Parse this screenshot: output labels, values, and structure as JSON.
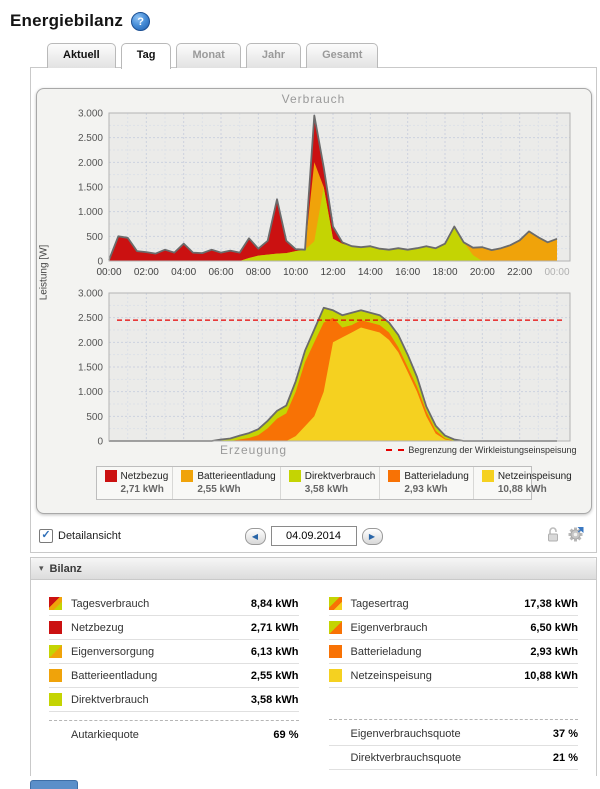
{
  "header": {
    "title": "Energiebilanz",
    "help_glyph": "?"
  },
  "tabs": [
    {
      "label": "Aktuell"
    },
    {
      "label": "Tag"
    },
    {
      "label": "Monat"
    },
    {
      "label": "Jahr"
    },
    {
      "label": "Gesamt"
    }
  ],
  "colors": {
    "netzbezug": "#cb1111",
    "batterieentladung": "#f0a30a",
    "direktverbrauch": "#c4d403",
    "batterieladung": "#f87205",
    "netzeinspeisung": "#f5d120",
    "limit_line": "#e60000",
    "outline": "#6b6b6b"
  },
  "swatches": {
    "tagesverbrauch": [
      "netzbezug",
      "batterieentladung",
      "direktverbrauch"
    ],
    "tagesertrag": [
      "direktverbrauch",
      "batterieladung",
      "netzeinspeisung"
    ],
    "eigenversorgung": [
      "direktverbrauch",
      "batterieentladung"
    ],
    "eigenverbrauch": [
      "direktverbrauch",
      "batterieladung"
    ]
  },
  "axis": {
    "ylabel": "Leistung [W]",
    "unit": "W",
    "yticks": [
      "3.000",
      "2.500",
      "2.000",
      "1.500",
      "1.000",
      "500",
      "0"
    ],
    "xticks": [
      "00:00",
      "02:00",
      "04:00",
      "06:00",
      "08:00",
      "10:00",
      "12:00",
      "14:00",
      "16:00",
      "18:00",
      "20:00",
      "22:00",
      "00:00"
    ]
  },
  "chart_data": [
    {
      "type": "area",
      "stacked": true,
      "title": "Verbrauch",
      "ylabel": "Leistung [W]",
      "ylim": [
        0,
        3000
      ],
      "x_hours_start": 0,
      "x_hours_step": 0.5,
      "series": [
        {
          "name": "Direktverbrauch",
          "color_key": "direktverbrauch",
          "values": [
            0,
            0,
            0,
            0,
            0,
            0,
            0,
            0,
            0,
            0,
            0,
            0,
            0,
            0,
            0,
            60,
            110,
            130,
            150,
            160,
            200,
            230,
            400,
            1500,
            450,
            350,
            300,
            280,
            300,
            250,
            230,
            260,
            230,
            260,
            300,
            260,
            350,
            700,
            380,
            120,
            0,
            0,
            0,
            0,
            0,
            0,
            0,
            0,
            0
          ]
        },
        {
          "name": "Batterieentladung",
          "color_key": "batterieentladung",
          "values": [
            0,
            0,
            0,
            0,
            0,
            0,
            0,
            0,
            0,
            0,
            0,
            0,
            0,
            0,
            0,
            0,
            0,
            0,
            0,
            0,
            0,
            0,
            1600,
            0,
            0,
            0,
            0,
            0,
            0,
            0,
            0,
            0,
            0,
            0,
            0,
            0,
            0,
            0,
            0,
            150,
            280,
            220,
            260,
            320,
            420,
            600,
            480,
            380,
            450
          ]
        },
        {
          "name": "Netzbezug",
          "color_key": "netzbezug",
          "values": [
            20,
            500,
            470,
            200,
            180,
            150,
            230,
            170,
            350,
            170,
            160,
            230,
            170,
            210,
            170,
            400,
            140,
            280,
            1100,
            250,
            40,
            0,
            950,
            400,
            250,
            30,
            0,
            0,
            0,
            0,
            0,
            0,
            0,
            0,
            0,
            0,
            0,
            0,
            0,
            0,
            0,
            0,
            0,
            0,
            0,
            0,
            0,
            0,
            0
          ]
        }
      ]
    },
    {
      "type": "area",
      "stacked": true,
      "title": "Erzeugung",
      "ylabel": "Leistung [W]",
      "ylim": [
        0,
        3000
      ],
      "x_hours_start": 0,
      "x_hours_step": 0.5,
      "limit_w": 2450,
      "series": [
        {
          "name": "Netzeinspeisung",
          "color_key": "netzeinspeisung",
          "values": [
            0,
            0,
            0,
            0,
            0,
            0,
            0,
            0,
            0,
            0,
            0,
            0,
            0,
            0,
            0,
            0,
            0,
            0,
            0,
            0,
            100,
            300,
            500,
            1000,
            2000,
            2100,
            2200,
            2300,
            2250,
            2200,
            2050,
            1800,
            1400,
            1000,
            500,
            150,
            30,
            0,
            0,
            0,
            0,
            0,
            0,
            0,
            0,
            0,
            0,
            0,
            0
          ]
        },
        {
          "name": "Batterieladung",
          "color_key": "batterieladung",
          "values": [
            0,
            0,
            0,
            0,
            0,
            0,
            0,
            0,
            0,
            0,
            0,
            0,
            0,
            0,
            30,
            60,
            120,
            260,
            450,
            560,
            900,
            1300,
            1500,
            1400,
            500,
            200,
            150,
            150,
            150,
            150,
            150,
            100,
            100,
            100,
            100,
            60,
            20,
            0,
            0,
            0,
            0,
            0,
            0,
            0,
            0,
            0,
            0,
            0,
            0
          ]
        },
        {
          "name": "Direktverbrauch",
          "color_key": "direktverbrauch",
          "values": [
            0,
            0,
            0,
            0,
            0,
            0,
            0,
            0,
            0,
            0,
            0,
            0,
            30,
            50,
            80,
            100,
            120,
            150,
            160,
            160,
            210,
            230,
            260,
            300,
            150,
            250,
            250,
            200,
            200,
            200,
            200,
            250,
            250,
            200,
            100,
            100,
            60,
            30,
            0,
            0,
            0,
            0,
            0,
            0,
            0,
            0,
            0,
            0,
            0
          ]
        }
      ]
    }
  ],
  "limit_legend": {
    "label": "Begrenzung der Wirkleistungseinspeisung"
  },
  "legend": {
    "items": [
      {
        "label": "Netzbezug",
        "value": "2,71 kWh",
        "swatch": "netzbezug"
      },
      {
        "label": "Batterieentladung",
        "value": "2,55 kWh",
        "swatch": "batterieentladung"
      },
      {
        "label": "Direktverbrauch",
        "value": "3,58 kWh",
        "swatch": "direktverbrauch"
      },
      {
        "label": "Batterieladung",
        "value": "2,93 kWh",
        "swatch": "batterieladung"
      },
      {
        "label": "Netzeinspeisung",
        "value": "10,88 kWh",
        "swatch": "netzeinspeisung"
      }
    ]
  },
  "controls": {
    "detail_label": "Detailansicht",
    "detail_checked": true,
    "check_glyph": "✓",
    "prev_glyph": "◀",
    "next_glyph": "▶",
    "date_value": "04.09.2014"
  },
  "bilanz": {
    "arrow_glyph": "▾",
    "header": "Bilanz",
    "left_rows": [
      {
        "label": "Tagesverbrauch",
        "value": "8,84 kWh",
        "swatch": "tagesverbrauch"
      },
      {
        "label": "Netzbezug",
        "value": "2,71 kWh",
        "swatch": "netzbezug"
      },
      {
        "label": "Eigenversorgung",
        "value": "6,13 kWh",
        "swatch": "eigenversorgung"
      },
      {
        "label": "Batterieentladung",
        "value": "2,55 kWh",
        "swatch": "batterieentladung"
      },
      {
        "label": "Direktverbrauch",
        "value": "3,58 kWh",
        "swatch": "direktverbrauch"
      }
    ],
    "right_rows": [
      {
        "label": "Tagesertrag",
        "value": "17,38 kWh",
        "swatch": "tagesertrag"
      },
      {
        "label": "Eigenverbrauch",
        "value": "6,50 kWh",
        "swatch": "eigenverbrauch"
      },
      {
        "label": "Batterieladung",
        "value": "2,93 kWh",
        "swatch": "batterieladung"
      },
      {
        "label": "Netzeinspeisung",
        "value": "10,88 kWh",
        "swatch": "netzeinspeisung"
      }
    ],
    "left_summary": [
      {
        "label": "Autarkiequote",
        "value": "69 %"
      }
    ],
    "right_summary": [
      {
        "label": "Eigenverbrauchsquote",
        "value": "37 %"
      },
      {
        "label": "Direktverbrauchsquote",
        "value": "21 %"
      }
    ]
  }
}
